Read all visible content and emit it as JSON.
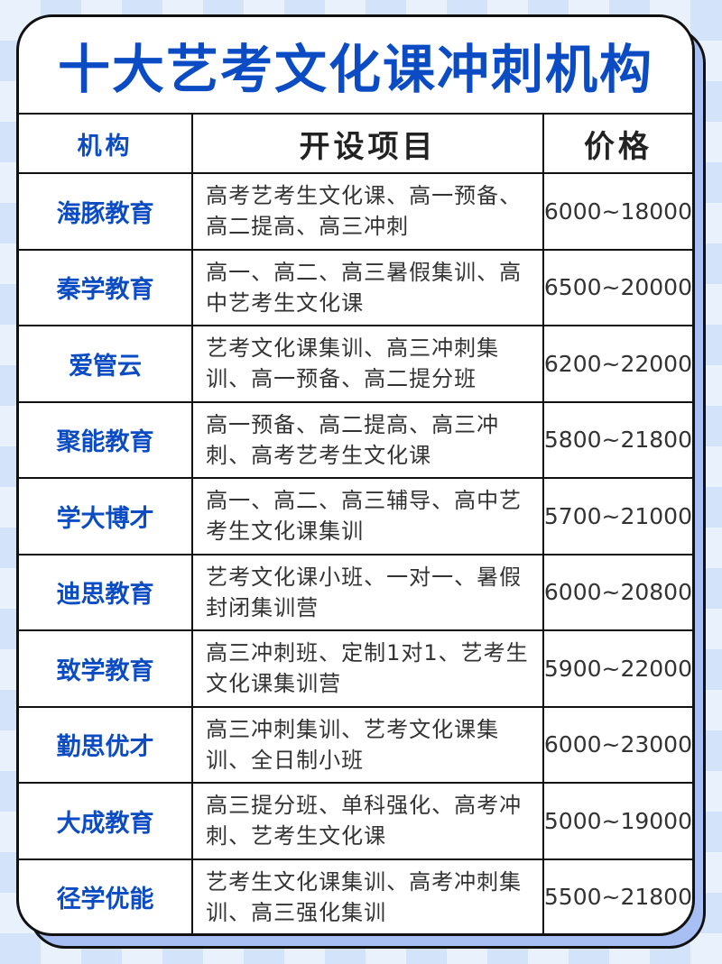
{
  "title": "十大艺考文化课冲刺机构",
  "headers": [
    "机构",
    "开设项目",
    "价格"
  ],
  "rows": [
    {
      "name": "海豚教育",
      "items": "高考艺考生文化课、高一预备、高二提高、高三冲刺",
      "price": "6000~18000"
    },
    {
      "name": "秦学教育",
      "items": "高一、高二、高三暑假集训、高中艺考生文化课",
      "price": "6500~20000"
    },
    {
      "name": "爱管云",
      "items": "艺考文化课集训、高三冲刺集训、高一预备、高二提分班",
      "price": "6200~22000"
    },
    {
      "name": "聚能教育",
      "items": "高一预备、高二提高、高三冲刺、高考艺考生文化课",
      "price": "5800~21800"
    },
    {
      "name": "学大博才",
      "items": "高一、高二、高三辅导、高中艺考生文化课集训",
      "price": "5700~21000"
    },
    {
      "name": "迪思教育",
      "items": "艺考文化课小班、一对一、暑假封闭集训营",
      "price": "6000~20800"
    },
    {
      "name": "致学教育",
      "items": "高三冲刺班、定制1对1、艺考生文化课集训营",
      "price": "5900~22000"
    },
    {
      "name": "勤思优才",
      "items": "高三冲刺集训、艺考文化课集训、全日制小班",
      "price": "6000~23000"
    },
    {
      "name": "大成教育",
      "items": "高三提分班、单科强化、高考冲刺、艺考生文化课",
      "price": "5000~19000"
    },
    {
      "name": "径学优能",
      "items": "艺考生文化课集训、高考冲刺集训、高三强化集训",
      "price": "5500~21800"
    }
  ],
  "colors": {
    "accent": "#0b4cc4",
    "shadow": "#a7bff2"
  }
}
